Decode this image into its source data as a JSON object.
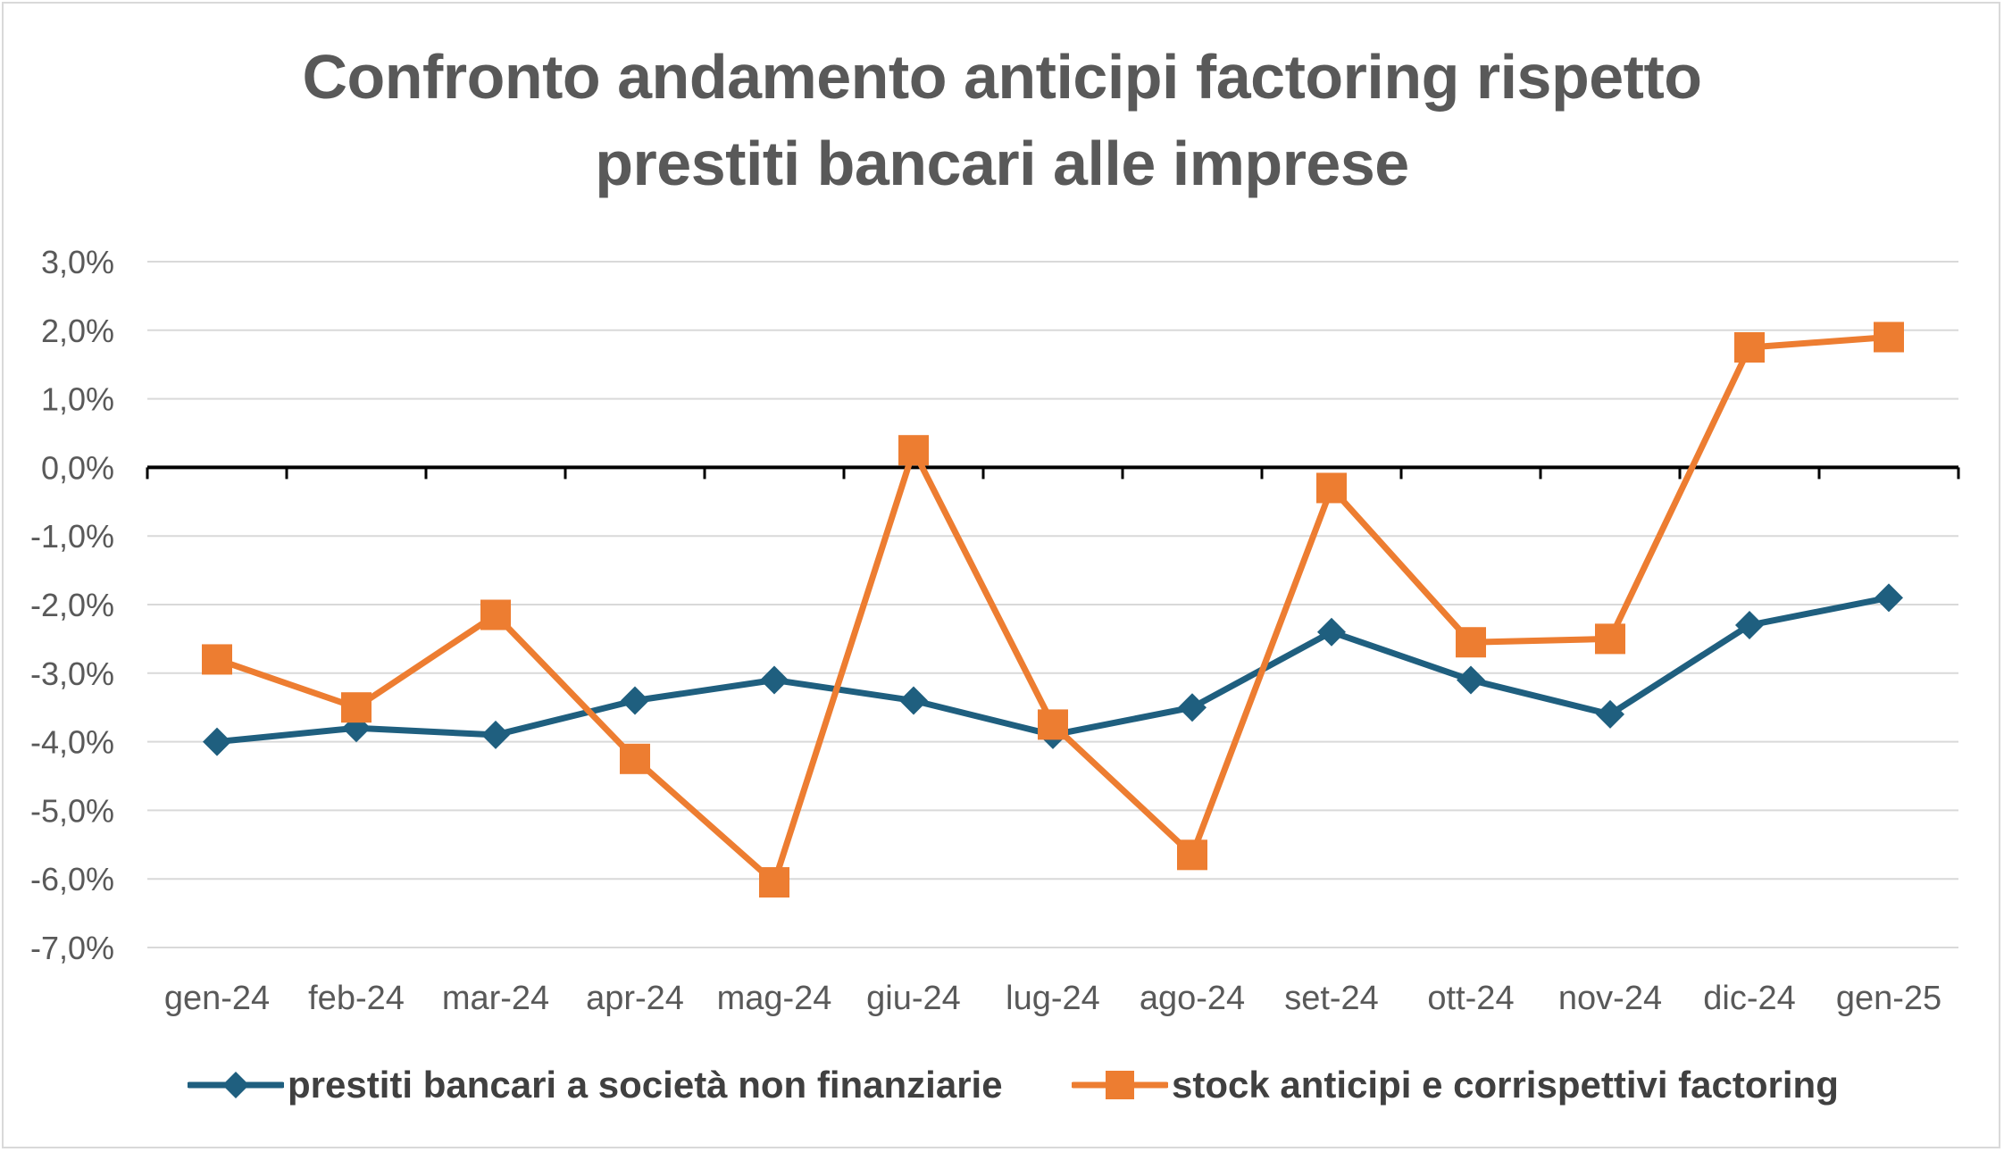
{
  "chart_data": {
    "type": "line",
    "title_lines": [
      "Confronto andamento anticipi factoring rispetto",
      "prestiti bancari alle imprese"
    ],
    "categories": [
      "gen-24",
      "feb-24",
      "mar-24",
      "apr-24",
      "mag-24",
      "giu-24",
      "lug-24",
      "ago-24",
      "set-24",
      "ott-24",
      "nov-24",
      "dic-24",
      "gen-25"
    ],
    "y_ticks": [
      "3,0%",
      "2,0%",
      "1,0%",
      "0,0%",
      "-1,0%",
      "-2,0%",
      "-3,0%",
      "-4,0%",
      "-5,0%",
      "-6,0%",
      "-7,0%"
    ],
    "ylim": [
      -7.0,
      3.0
    ],
    "grid": true,
    "legend_position": "bottom",
    "series": [
      {
        "name": "prestiti bancari a società non finanziarie",
        "color": "#1f5f7f",
        "marker": "diamond",
        "values": [
          -4.0,
          -3.8,
          -3.9,
          -3.4,
          -3.1,
          -3.4,
          -3.9,
          -3.5,
          -2.4,
          -3.1,
          -3.6,
          -2.3,
          -1.9
        ]
      },
      {
        "name": "stock anticipi e corrispettivi factoring",
        "color": "#ed7d31",
        "marker": "square",
        "values": [
          -2.8,
          -3.5,
          -2.15,
          -4.25,
          -6.05,
          0.25,
          -3.75,
          -5.65,
          -0.3,
          -2.55,
          -2.5,
          1.75,
          1.9
        ]
      }
    ]
  }
}
